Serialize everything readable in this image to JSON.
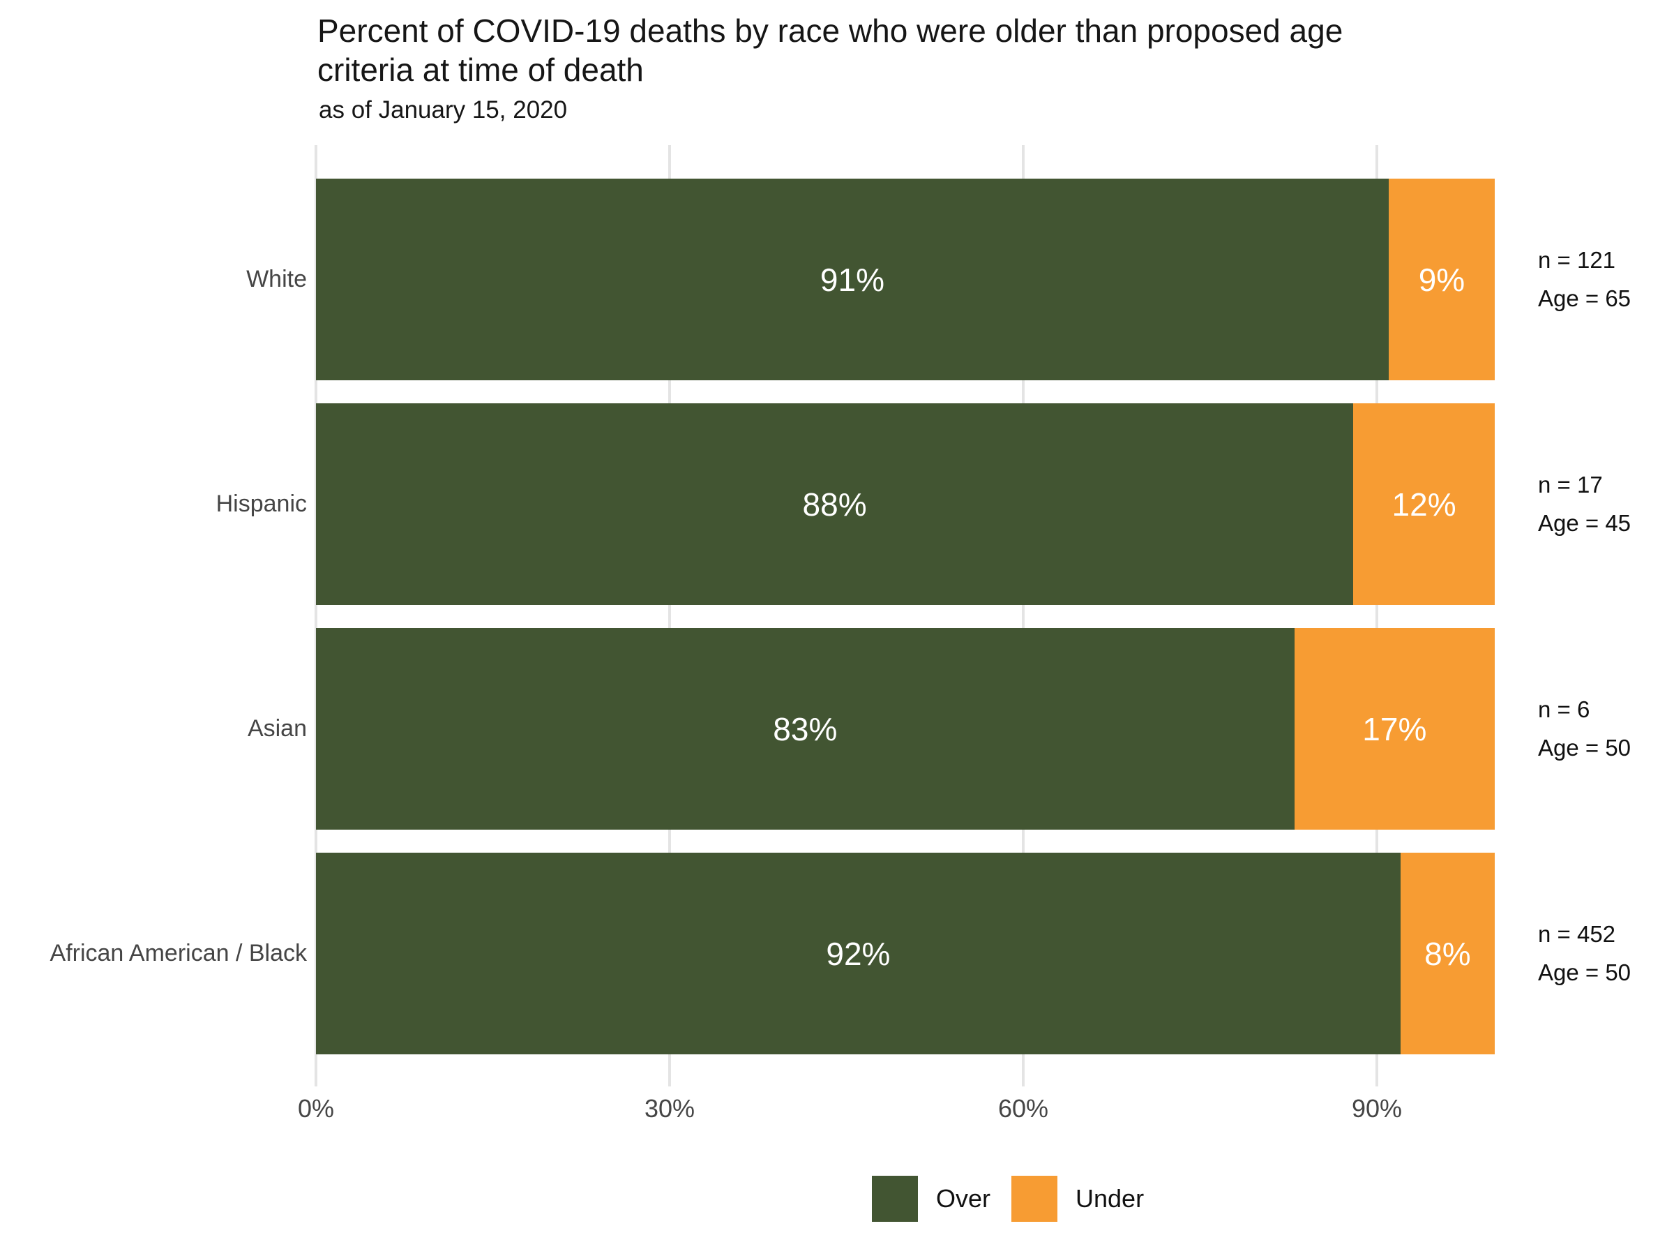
{
  "header": {
    "title_lines": [
      "Percent of COVID-19 deaths by race who were older than proposed age",
      "criteria at time of death"
    ],
    "subtitle": "as of January 15, 2020"
  },
  "colors": {
    "over": "#425532",
    "under": "#f79c33",
    "gridline": "#e4e4e4",
    "axis_text": "#454545",
    "bar_label_text": "#ffffff"
  },
  "chart_data": {
    "type": "bar",
    "orientation": "horizontal",
    "stacked": true,
    "title": "Percent of COVID-19 deaths by race who were older than proposed age criteria at time of death",
    "subtitle": "as of January 15, 2020",
    "categories": [
      "White",
      "Hispanic",
      "Asian",
      "African American / Black"
    ],
    "series": [
      {
        "name": "Over",
        "color": "#425532",
        "values": [
          91,
          88,
          83,
          92
        ]
      },
      {
        "name": "Under",
        "color": "#f79c33",
        "values": [
          9,
          12,
          17,
          8
        ]
      }
    ],
    "bar_value_labels": {
      "over": [
        "91%",
        "88%",
        "83%",
        "92%"
      ],
      "under": [
        "9%",
        "12%",
        "17%",
        "8%"
      ]
    },
    "right_annotations": [
      {
        "line1": "n = 121",
        "line2": "Age = 65"
      },
      {
        "line1": "n = 17",
        "line2": "Age = 45"
      },
      {
        "line1": "n = 6",
        "line2": "Age = 50"
      },
      {
        "line1": "n = 452",
        "line2": "Age = 50"
      }
    ],
    "xlim": [
      0,
      100
    ],
    "x_tick_values": [
      0,
      30,
      60,
      90
    ],
    "x_tick_labels": [
      "0%",
      "30%",
      "60%",
      "90%"
    ],
    "grid": "vertical-gridlines-only",
    "legend_position": "bottom",
    "legend": [
      "Over",
      "Under"
    ]
  }
}
